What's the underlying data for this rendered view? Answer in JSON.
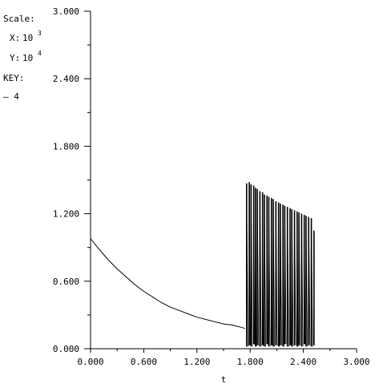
{
  "scale_panel": {
    "title": "Scale:",
    "x_label": "X:",
    "x_base": "10",
    "x_exp": "3",
    "y_label": "Y:",
    "y_base": "10",
    "y_exp": "4",
    "key_label": "KEY:",
    "key_symbol": "— 4"
  },
  "chart_data": {
    "type": "line",
    "xlabel": "t",
    "ylabel": "",
    "xlim": [
      0.0,
      3.0
    ],
    "ylim": [
      0.0,
      3.0
    ],
    "x_ticks": [
      "0.000",
      "0.600",
      "1.200",
      "1.800",
      "2.400",
      "3.000"
    ],
    "x_tick_values": [
      0.0,
      0.6,
      1.2,
      1.8,
      2.4,
      3.0
    ],
    "y_ticks": [
      "0.000",
      "0.600",
      "1.200",
      "1.800",
      "2.400",
      "3.000"
    ],
    "y_tick_values": [
      0.0,
      0.6,
      1.2,
      1.8,
      2.4,
      3.0
    ],
    "series": [
      {
        "color": "#000000",
        "decay": {
          "x": [
            0.0,
            0.1,
            0.2,
            0.3,
            0.4,
            0.5,
            0.6,
            0.7,
            0.8,
            0.9,
            1.0,
            1.1,
            1.2,
            1.3,
            1.4,
            1.5,
            1.6,
            1.7,
            1.74
          ],
          "y": [
            0.98,
            0.88,
            0.79,
            0.71,
            0.64,
            0.57,
            0.51,
            0.46,
            0.41,
            0.37,
            0.34,
            0.31,
            0.28,
            0.26,
            0.24,
            0.22,
            0.21,
            0.19,
            0.18
          ]
        },
        "spikes": {
          "x": [
            1.76,
            1.79,
            1.81,
            1.84,
            1.86,
            1.88,
            1.91,
            1.94,
            1.96,
            1.99,
            2.01,
            2.04,
            2.06,
            2.09,
            2.12,
            2.14,
            2.17,
            2.19,
            2.22,
            2.25,
            2.27,
            2.3,
            2.33,
            2.35,
            2.38,
            2.41,
            2.43,
            2.46,
            2.49,
            2.52
          ],
          "peak": [
            1.47,
            1.48,
            1.46,
            1.45,
            1.43,
            1.42,
            1.4,
            1.39,
            1.37,
            1.36,
            1.35,
            1.34,
            1.33,
            1.31,
            1.3,
            1.29,
            1.28,
            1.27,
            1.26,
            1.25,
            1.24,
            1.23,
            1.22,
            1.21,
            1.2,
            1.19,
            1.18,
            1.17,
            1.16,
            1.05
          ],
          "trough": [
            0.02,
            0.03,
            0.02,
            0.04,
            0.02,
            0.03,
            0.02,
            0.03,
            0.02,
            0.04,
            0.02,
            0.03,
            0.02,
            0.03,
            0.02,
            0.03,
            0.02,
            0.04,
            0.02,
            0.03,
            0.02,
            0.03,
            0.02,
            0.03,
            0.02,
            0.04,
            0.02,
            0.03,
            0.02,
            0.03
          ]
        }
      }
    ],
    "grid": false
  }
}
